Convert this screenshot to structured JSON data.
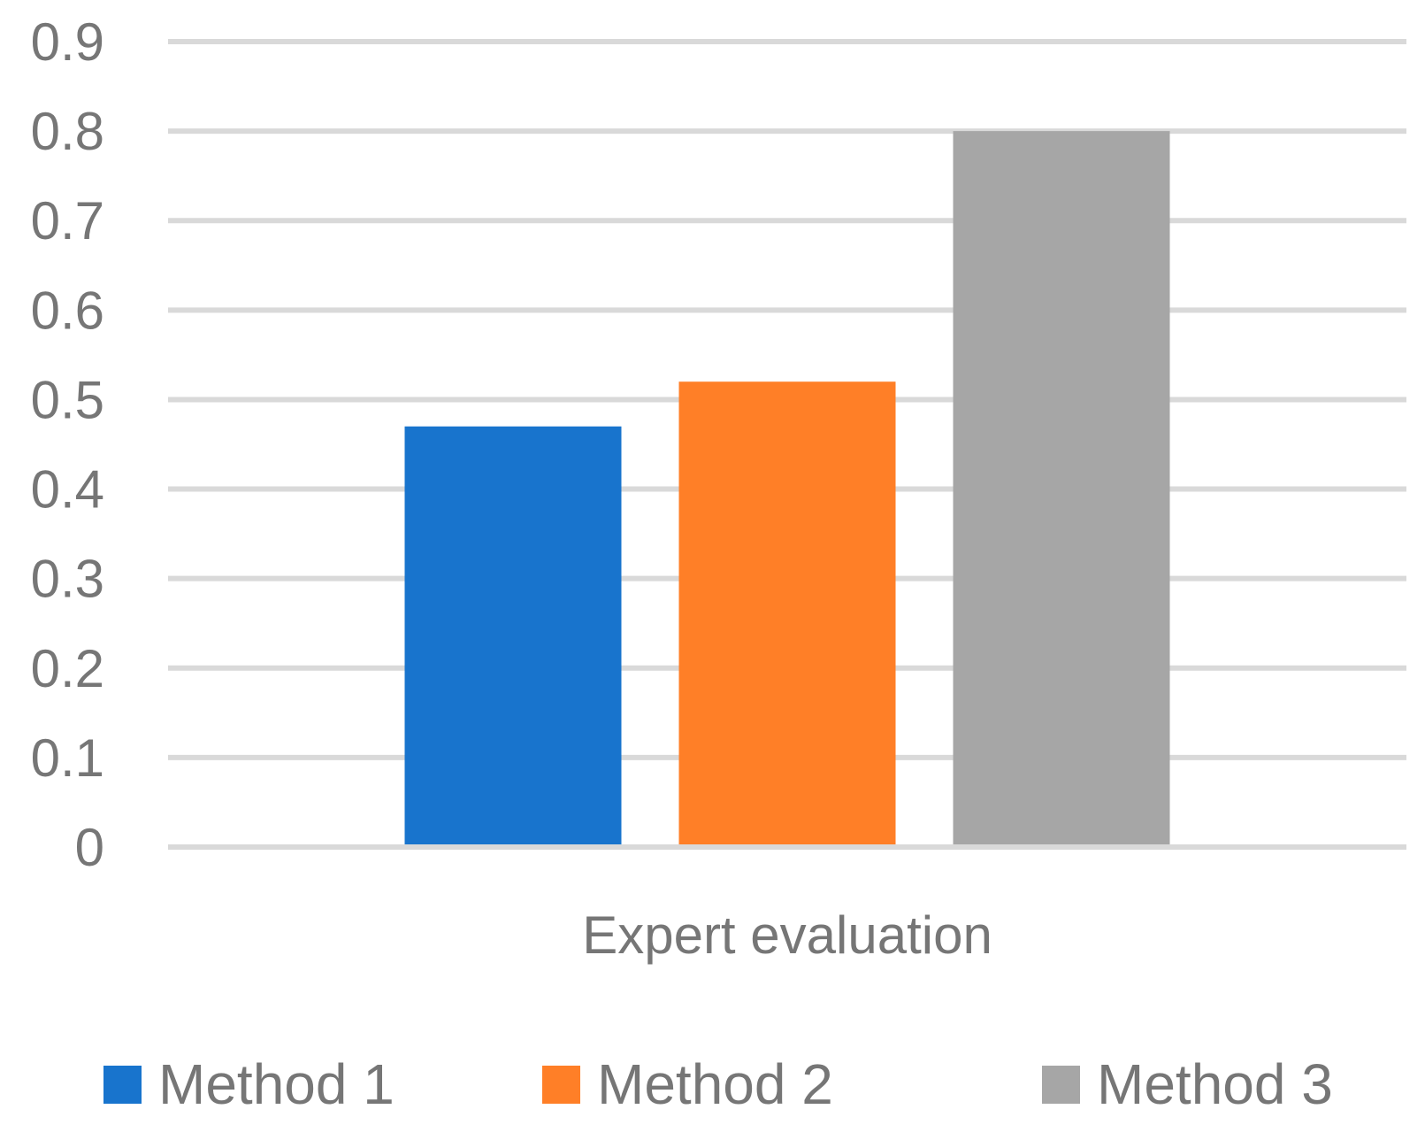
{
  "chart_data": {
    "type": "bar",
    "categories": [
      "Expert evaluation"
    ],
    "series": [
      {
        "name": "Method 1",
        "values": [
          0.47
        ],
        "color": "#1874cd"
      },
      {
        "name": "Method 2",
        "values": [
          0.52
        ],
        "color": "#ff7f27"
      },
      {
        "name": "Method 3",
        "values": [
          0.8
        ],
        "color": "#a6a6a6"
      }
    ],
    "ylim": [
      0,
      0.9
    ],
    "yticks": [
      "0",
      "0.1",
      "0.2",
      "0.3",
      "0.4",
      "0.5",
      "0.6",
      "0.7",
      "0.8",
      "0.9"
    ],
    "grid": true,
    "legend_position": "bottom",
    "title": "",
    "xlabel": "",
    "ylabel": ""
  }
}
